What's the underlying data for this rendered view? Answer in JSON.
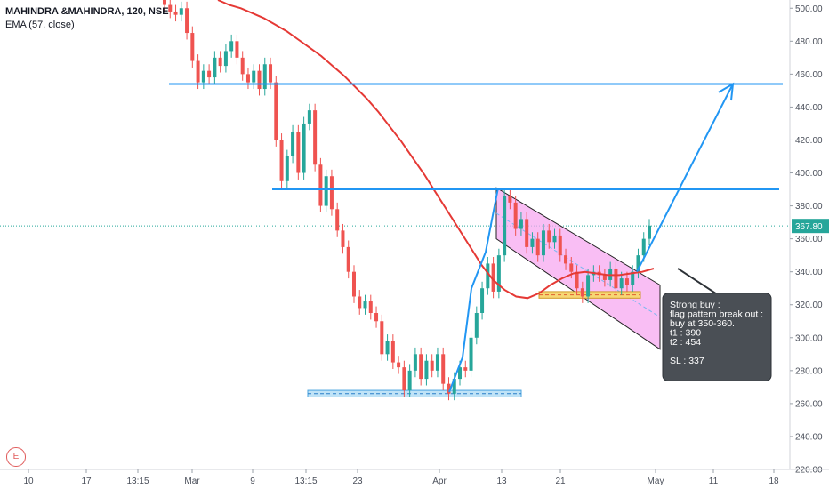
{
  "header": {
    "symbol_line": "MAHINDRA &MAHINDRA, 120, NSE",
    "indicator_line": "EMA (57, close)"
  },
  "logo_letter": "E",
  "colors": {
    "up": "#26a69a",
    "down": "#ef5350",
    "ema": "#e53935",
    "trendline": "#2196f3",
    "channel_fill": "#f7a8f0",
    "support_zone": "#bfe3f7",
    "flag_zone": "#f7d774",
    "note_bg": "#4a4f55",
    "price_label_bg": "#26a69a"
  },
  "chart_data": {
    "type": "candlestick",
    "title": "MAHINDRA &MAHINDRA, 120, NSE",
    "ylim": [
      220,
      505
    ],
    "y_ticks": [
      220,
      240,
      260,
      280,
      300,
      320,
      340,
      360,
      380,
      400,
      420,
      440,
      460,
      480,
      500
    ],
    "y_tick_labels": [
      "220.00",
      "240.00",
      "260.00",
      "280.00",
      "300.00",
      "320.00",
      "340.00",
      "360.00",
      "380.00",
      "400.00",
      "420.00",
      "440.00",
      "460.00",
      "480.00",
      "500.00"
    ],
    "x_ticks": [
      "10",
      "17",
      "13:15",
      "Mar",
      "9",
      "13:15",
      "23",
      "Apr",
      "13",
      "21",
      "May",
      "11",
      "18"
    ],
    "last_price_label": "367.80",
    "last_price": 367.8,
    "grid": false,
    "series": [
      {
        "name": "MAHINDRA &MAHINDRA",
        "kind": "candles",
        "close": [
          502,
          498,
          496,
          500,
          485,
          468,
          455,
          462,
          458,
          470,
          465,
          474,
          480,
          470,
          460,
          455,
          462,
          451,
          466,
          455,
          420,
          395,
          410,
          425,
          400,
          430,
          438,
          405,
          380,
          398,
          378,
          365,
          355,
          340,
          325,
          318,
          322,
          315,
          310,
          290,
          298,
          285,
          282,
          268,
          280,
          290,
          275,
          286,
          280,
          290,
          272,
          266,
          275,
          282,
          280,
          300,
          315,
          330,
          345,
          328,
          350,
          386,
          382,
          366,
          372,
          355,
          360,
          350,
          365,
          358,
          362,
          350,
          345,
          340,
          330,
          325,
          338,
          340,
          338,
          335,
          342,
          330,
          336,
          332,
          340,
          350,
          360,
          368
        ]
      },
      {
        "name": "EMA (57, close)",
        "kind": "line",
        "values": [
          505,
          502,
          500,
          497,
          494,
          490,
          486,
          481,
          476,
          471,
          465,
          459,
          452,
          445,
          437,
          428,
          419,
          409,
          399,
          388,
          377,
          366,
          355,
          344,
          335,
          329,
          325,
          324,
          327,
          332,
          336,
          339,
          340,
          339,
          338,
          338,
          339,
          340,
          342
        ]
      }
    ],
    "annotations": {
      "horizontal_lines": [
        454,
        390
      ],
      "support_zone": [
        264,
        268
      ],
      "flag_zone": [
        324,
        328
      ],
      "channel_top": [
        391,
        332
      ],
      "channel_bottom": [
        360,
        293
      ],
      "projection_target": 454,
      "note_lines": [
        "Strong buy :",
        "flag pattern break out :",
        "buy at 350-360.",
        "t1 : 390",
        "t2 : 454",
        "",
        "SL : 337"
      ]
    }
  }
}
